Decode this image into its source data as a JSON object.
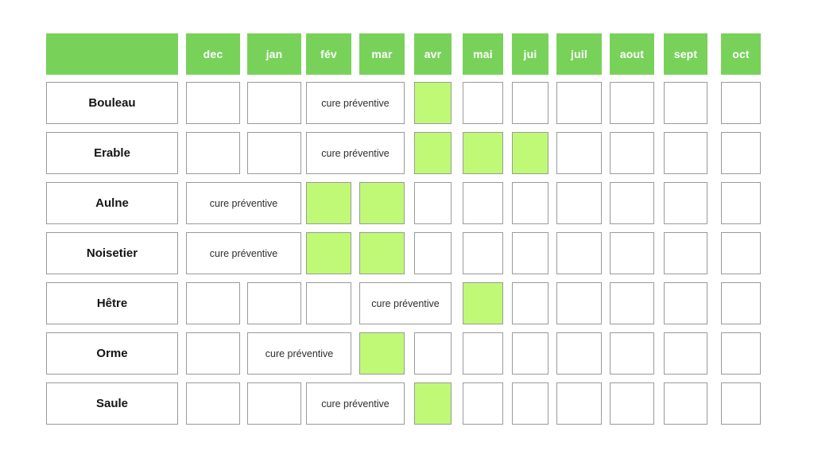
{
  "chart_data": {
    "type": "heatmap",
    "title": "",
    "description_visible_text_only": true,
    "columns": [
      "dec",
      "jan",
      "fév",
      "mar",
      "avr",
      "mai",
      "jui",
      "juil",
      "aout",
      "sept",
      "oct"
    ],
    "cure_label": "cure préventive",
    "rows": [
      {
        "name": "Bouleau",
        "cure_label": "cure préventive",
        "cure_start_index": 2,
        "cure_span": 2,
        "cure_months": [
          "fév",
          "mar"
        ],
        "active_indices": [
          4
        ],
        "active_months": [
          "avr"
        ]
      },
      {
        "name": "Erable",
        "cure_label": "cure préventive",
        "cure_start_index": 2,
        "cure_span": 2,
        "cure_months": [
          "fév",
          "mar"
        ],
        "active_indices": [
          4,
          5,
          6
        ],
        "active_months": [
          "avr",
          "mai",
          "jui"
        ]
      },
      {
        "name": "Aulne",
        "cure_label": "cure préventive",
        "cure_start_index": 0,
        "cure_span": 2,
        "cure_months": [
          "dec",
          "jan"
        ],
        "active_indices": [
          2,
          3
        ],
        "active_months": [
          "fév",
          "mar"
        ]
      },
      {
        "name": "Noisetier",
        "cure_label": "cure préventive",
        "cure_start_index": 0,
        "cure_span": 2,
        "cure_months": [
          "dec",
          "jan"
        ],
        "active_indices": [
          2,
          3
        ],
        "active_months": [
          "fév",
          "mar"
        ]
      },
      {
        "name": "Hêtre",
        "cure_label": "cure préventive",
        "cure_start_index": 3,
        "cure_span": 2,
        "cure_months": [
          "mar",
          "avr"
        ],
        "active_indices": [
          5
        ],
        "active_months": [
          "mai"
        ]
      },
      {
        "name": "Orme",
        "cure_label": "cure préventive",
        "cure_start_index": 1,
        "cure_span": 2,
        "cure_months": [
          "jan",
          "fév"
        ],
        "active_indices": [
          3
        ],
        "active_months": [
          "mar"
        ]
      },
      {
        "name": "Saule",
        "cure_label": "cure préventive",
        "cure_start_index": 2,
        "cure_span": 2,
        "cure_months": [
          "fév",
          "mar"
        ],
        "active_indices": [
          4
        ],
        "active_months": [
          "avr"
        ]
      }
    ],
    "legend_position": "none",
    "grid": "cells",
    "colors": {
      "header_green": "#78d25a",
      "active_lime": "#c0f976",
      "cell_border": "#9a9a9a",
      "header_text": "#ffffff",
      "name_text": "#141414",
      "cure_text": "#2e2e2e",
      "background": "#ffffff"
    }
  }
}
